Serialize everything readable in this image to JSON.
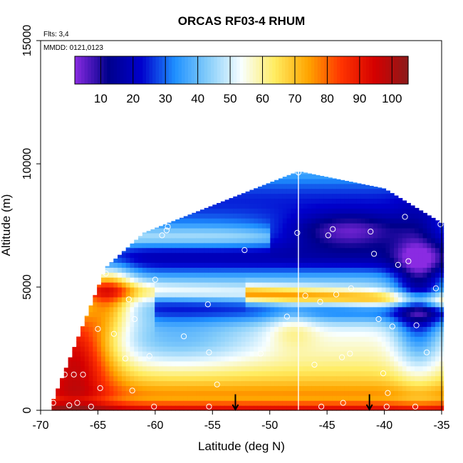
{
  "chart_data": {
    "type": "heatmap",
    "title": "ORCAS RF03-4 RHUM",
    "annotations": {
      "flights": "Flts: 3,4",
      "dates": "MMDD: 0121,0123"
    },
    "xlabel": "Latitude (deg N)",
    "ylabel": "Altitude (m)",
    "xlim": [
      -70,
      -35
    ],
    "ylim": [
      0,
      15000
    ],
    "x_ticks": [
      "-70",
      "-65",
      "-60",
      "-55",
      "-50",
      "-45",
      "-40",
      "-35"
    ],
    "y_ticks": [
      "0",
      "5000",
      "10000",
      "15000"
    ],
    "colorbar": {
      "range": [
        2,
        105
      ],
      "tick_labels": [
        "10",
        "20",
        "30",
        "40",
        "50",
        "60",
        "70",
        "80",
        "90",
        "100"
      ],
      "colors": [
        "#8a2be2",
        "#00008b",
        "#0000cd",
        "#1e90ff",
        "#87cefa",
        "#f8ffff",
        "#ffec60",
        "#ffa500",
        "#ff3300",
        "#d40000",
        "#8b1a1a"
      ]
    },
    "grid": false,
    "dropsondes": [
      {
        "lat": -68.9,
        "alt": 300
      },
      {
        "lat": -68.6,
        "alt": 1400
      },
      {
        "lat": -67.9,
        "alt": 1450
      },
      {
        "lat": -67.1,
        "alt": 1450
      },
      {
        "lat": -66.3,
        "alt": 1450
      },
      {
        "lat": -65.0,
        "alt": 3300
      },
      {
        "lat": -64.3,
        "alt": 5550
      },
      {
        "lat": -63.6,
        "alt": 3100
      },
      {
        "lat": -62.6,
        "alt": 2100
      },
      {
        "lat": -62.3,
        "alt": 4500
      },
      {
        "lat": -61.8,
        "alt": 3700
      },
      {
        "lat": -60.5,
        "alt": 2200
      },
      {
        "lat": -59.4,
        "alt": 7100
      },
      {
        "lat": -59.0,
        "alt": 7300
      },
      {
        "lat": -58.9,
        "alt": 7450
      },
      {
        "lat": -56.1,
        "alt": 8300
      },
      {
        "lat": -55.4,
        "alt": 4300
      },
      {
        "lat": -55.3,
        "alt": 2350
      },
      {
        "lat": -54.6,
        "alt": 1050
      },
      {
        "lat": -47.6,
        "alt": 7200
      },
      {
        "lat": -46.9,
        "alt": 4650
      },
      {
        "lat": -46.1,
        "alt": 1850
      },
      {
        "lat": -45.6,
        "alt": 4400
      },
      {
        "lat": -44.9,
        "alt": 7100
      },
      {
        "lat": -44.5,
        "alt": 7350
      },
      {
        "lat": -44.2,
        "alt": 4700
      },
      {
        "lat": -43.7,
        "alt": 2150
      },
      {
        "lat": -43.0,
        "alt": 2300
      },
      {
        "lat": -42.9,
        "alt": 4950
      },
      {
        "lat": -41.2,
        "alt": 7250
      },
      {
        "lat": -40.9,
        "alt": 6350
      },
      {
        "lat": -40.5,
        "alt": 3700
      },
      {
        "lat": -40.1,
        "alt": 1500
      },
      {
        "lat": -39.7,
        "alt": 700
      },
      {
        "lat": -39.3,
        "alt": 3400
      },
      {
        "lat": -38.8,
        "alt": 5900
      },
      {
        "lat": -38.2,
        "alt": 7850
      },
      {
        "lat": -37.9,
        "alt": 6050
      },
      {
        "lat": -37.2,
        "alt": 3450
      },
      {
        "lat": -36.3,
        "alt": 2350
      },
      {
        "lat": -35.5,
        "alt": 4950
      },
      {
        "lat": -35.1,
        "alt": 7550
      },
      {
        "lat": -65.8,
        "alt": 5500
      },
      {
        "lat": -60.0,
        "alt": 5300
      },
      {
        "lat": -50.8,
        "alt": 2300
      },
      {
        "lat": -48.5,
        "alt": 3800
      },
      {
        "lat": -52.2,
        "alt": 6500
      },
      {
        "lat": -57.5,
        "alt": 3000
      },
      {
        "lat": -62.0,
        "alt": 800
      },
      {
        "lat": -64.8,
        "alt": 900
      },
      {
        "lat": -66.8,
        "alt": 300
      },
      {
        "lat": -67.5,
        "alt": 200
      },
      {
        "lat": -65.6,
        "alt": 150
      },
      {
        "lat": -60.1,
        "alt": 150
      },
      {
        "lat": -55.3,
        "alt": 150
      },
      {
        "lat": -43.6,
        "alt": 300
      },
      {
        "lat": -39.8,
        "alt": 150
      },
      {
        "lat": -37.3,
        "alt": 150
      },
      {
        "lat": -47.5,
        "alt": 9650
      },
      {
        "lat": -45.5,
        "alt": 150
      }
    ],
    "arrows_at_lat": [
      -53.0,
      -41.3
    ],
    "vertical_line_lat": -47.5
  }
}
